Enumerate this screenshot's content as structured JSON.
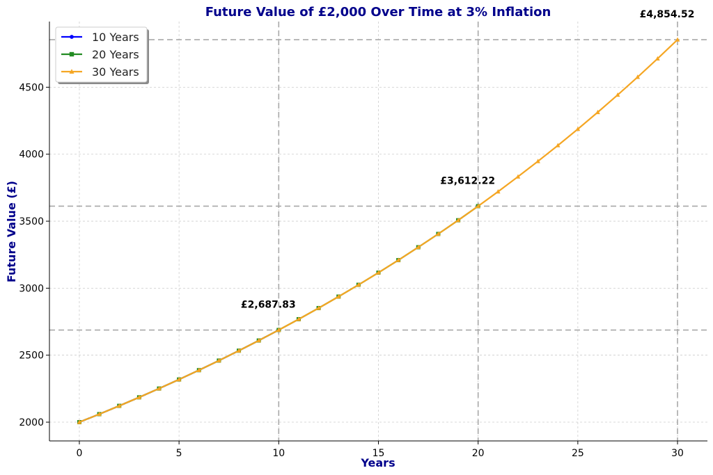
{
  "chart_data": {
    "type": "line",
    "title": "Future Value of £2,000 Over Time at 3% Inflation",
    "xlabel": "Years",
    "ylabel": "Future Value (£)",
    "xlim": [
      -1.5,
      31.5
    ],
    "ylim": [
      1860,
      4990
    ],
    "x_ticks": [
      0,
      5,
      10,
      15,
      20,
      25,
      30
    ],
    "y_ticks": [
      2000,
      2500,
      3000,
      3500,
      4000,
      4500
    ],
    "grid": true,
    "legend_position": "top-left",
    "title_color": "#00008b",
    "axis_label_color": "#00008b",
    "series": [
      {
        "name": "10 Years",
        "color": "#0000ff",
        "marker": "circle",
        "x": [
          0,
          1,
          2,
          3,
          4,
          5,
          6,
          7,
          8,
          9,
          10
        ],
        "values": [
          2000,
          2060,
          2121.8,
          2185.45,
          2251.02,
          2318.55,
          2388.1,
          2459.75,
          2533.54,
          2609.55,
          2687.83
        ]
      },
      {
        "name": "20 Years",
        "color": "#228b22",
        "marker": "square",
        "x": [
          0,
          1,
          2,
          3,
          4,
          5,
          6,
          7,
          8,
          9,
          10,
          11,
          12,
          13,
          14,
          15,
          16,
          17,
          18,
          19,
          20
        ],
        "values": [
          2000,
          2060,
          2121.8,
          2185.45,
          2251.02,
          2318.55,
          2388.1,
          2459.75,
          2533.54,
          2609.55,
          2687.83,
          2768.47,
          2851.52,
          2937.07,
          3025.18,
          3115.93,
          3209.41,
          3305.7,
          3404.87,
          3507.01,
          3612.22
        ]
      },
      {
        "name": "30 Years",
        "color": "#f5a623",
        "marker": "triangle",
        "x": [
          0,
          1,
          2,
          3,
          4,
          5,
          6,
          7,
          8,
          9,
          10,
          11,
          12,
          13,
          14,
          15,
          16,
          17,
          18,
          19,
          20,
          21,
          22,
          23,
          24,
          25,
          26,
          27,
          28,
          29,
          30
        ],
        "values": [
          2000,
          2060,
          2121.8,
          2185.45,
          2251.02,
          2318.55,
          2388.1,
          2459.75,
          2533.54,
          2609.55,
          2687.83,
          2768.47,
          2851.52,
          2937.07,
          3025.18,
          3115.93,
          3209.41,
          3305.7,
          3404.87,
          3507.01,
          3612.22,
          3720.59,
          3832.21,
          3947.17,
          4065.59,
          4187.56,
          4313.18,
          4442.58,
          4575.86,
          4713.13,
          4854.52
        ]
      }
    ],
    "reference_lines": [
      {
        "x": 10,
        "y": 2687.83
      },
      {
        "x": 20,
        "y": 3612.22
      },
      {
        "x": 30,
        "y": 4854.52
      }
    ],
    "annotations": [
      {
        "x": 10,
        "y": 2687.83,
        "text": "£2,687.83"
      },
      {
        "x": 20,
        "y": 3612.22,
        "text": "£3,612.22"
      },
      {
        "x": 30,
        "y": 4854.52,
        "text": "£4,854.52"
      }
    ]
  }
}
